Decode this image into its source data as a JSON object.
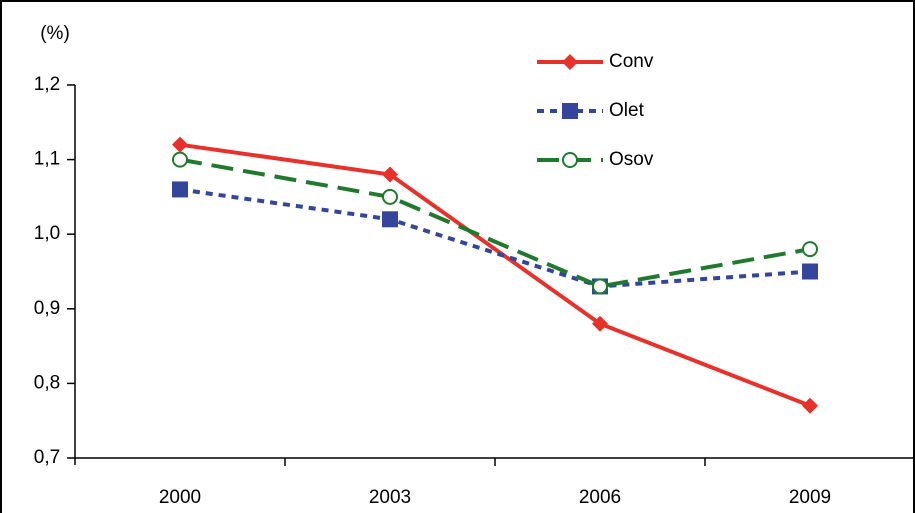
{
  "chart_data": {
    "type": "line",
    "y_label": "(%)",
    "categories": [
      "2000",
      "2003",
      "2006",
      "2009"
    ],
    "series": [
      {
        "name": "Conv",
        "color": "#e8312a",
        "values": [
          1.12,
          1.08,
          0.88,
          0.77
        ]
      },
      {
        "name": "Olet",
        "color": "#33469c",
        "values": [
          1.06,
          1.02,
          0.93,
          0.95
        ]
      },
      {
        "name": "Osov",
        "color": "#1f7a2e",
        "values": [
          1.1,
          1.05,
          0.93,
          0.98
        ]
      }
    ],
    "ylim": [
      0.7,
      1.2
    ],
    "yticks": [
      {
        "value": 0.7,
        "label": "0,7"
      },
      {
        "value": 0.8,
        "label": "0,8"
      },
      {
        "value": 0.9,
        "label": "0,9"
      },
      {
        "value": 1.0,
        "label": "1,0"
      },
      {
        "value": 1.1,
        "label": "1,1"
      },
      {
        "value": 1.2,
        "label": "1,2"
      }
    ],
    "grid": false,
    "legend": "top"
  }
}
